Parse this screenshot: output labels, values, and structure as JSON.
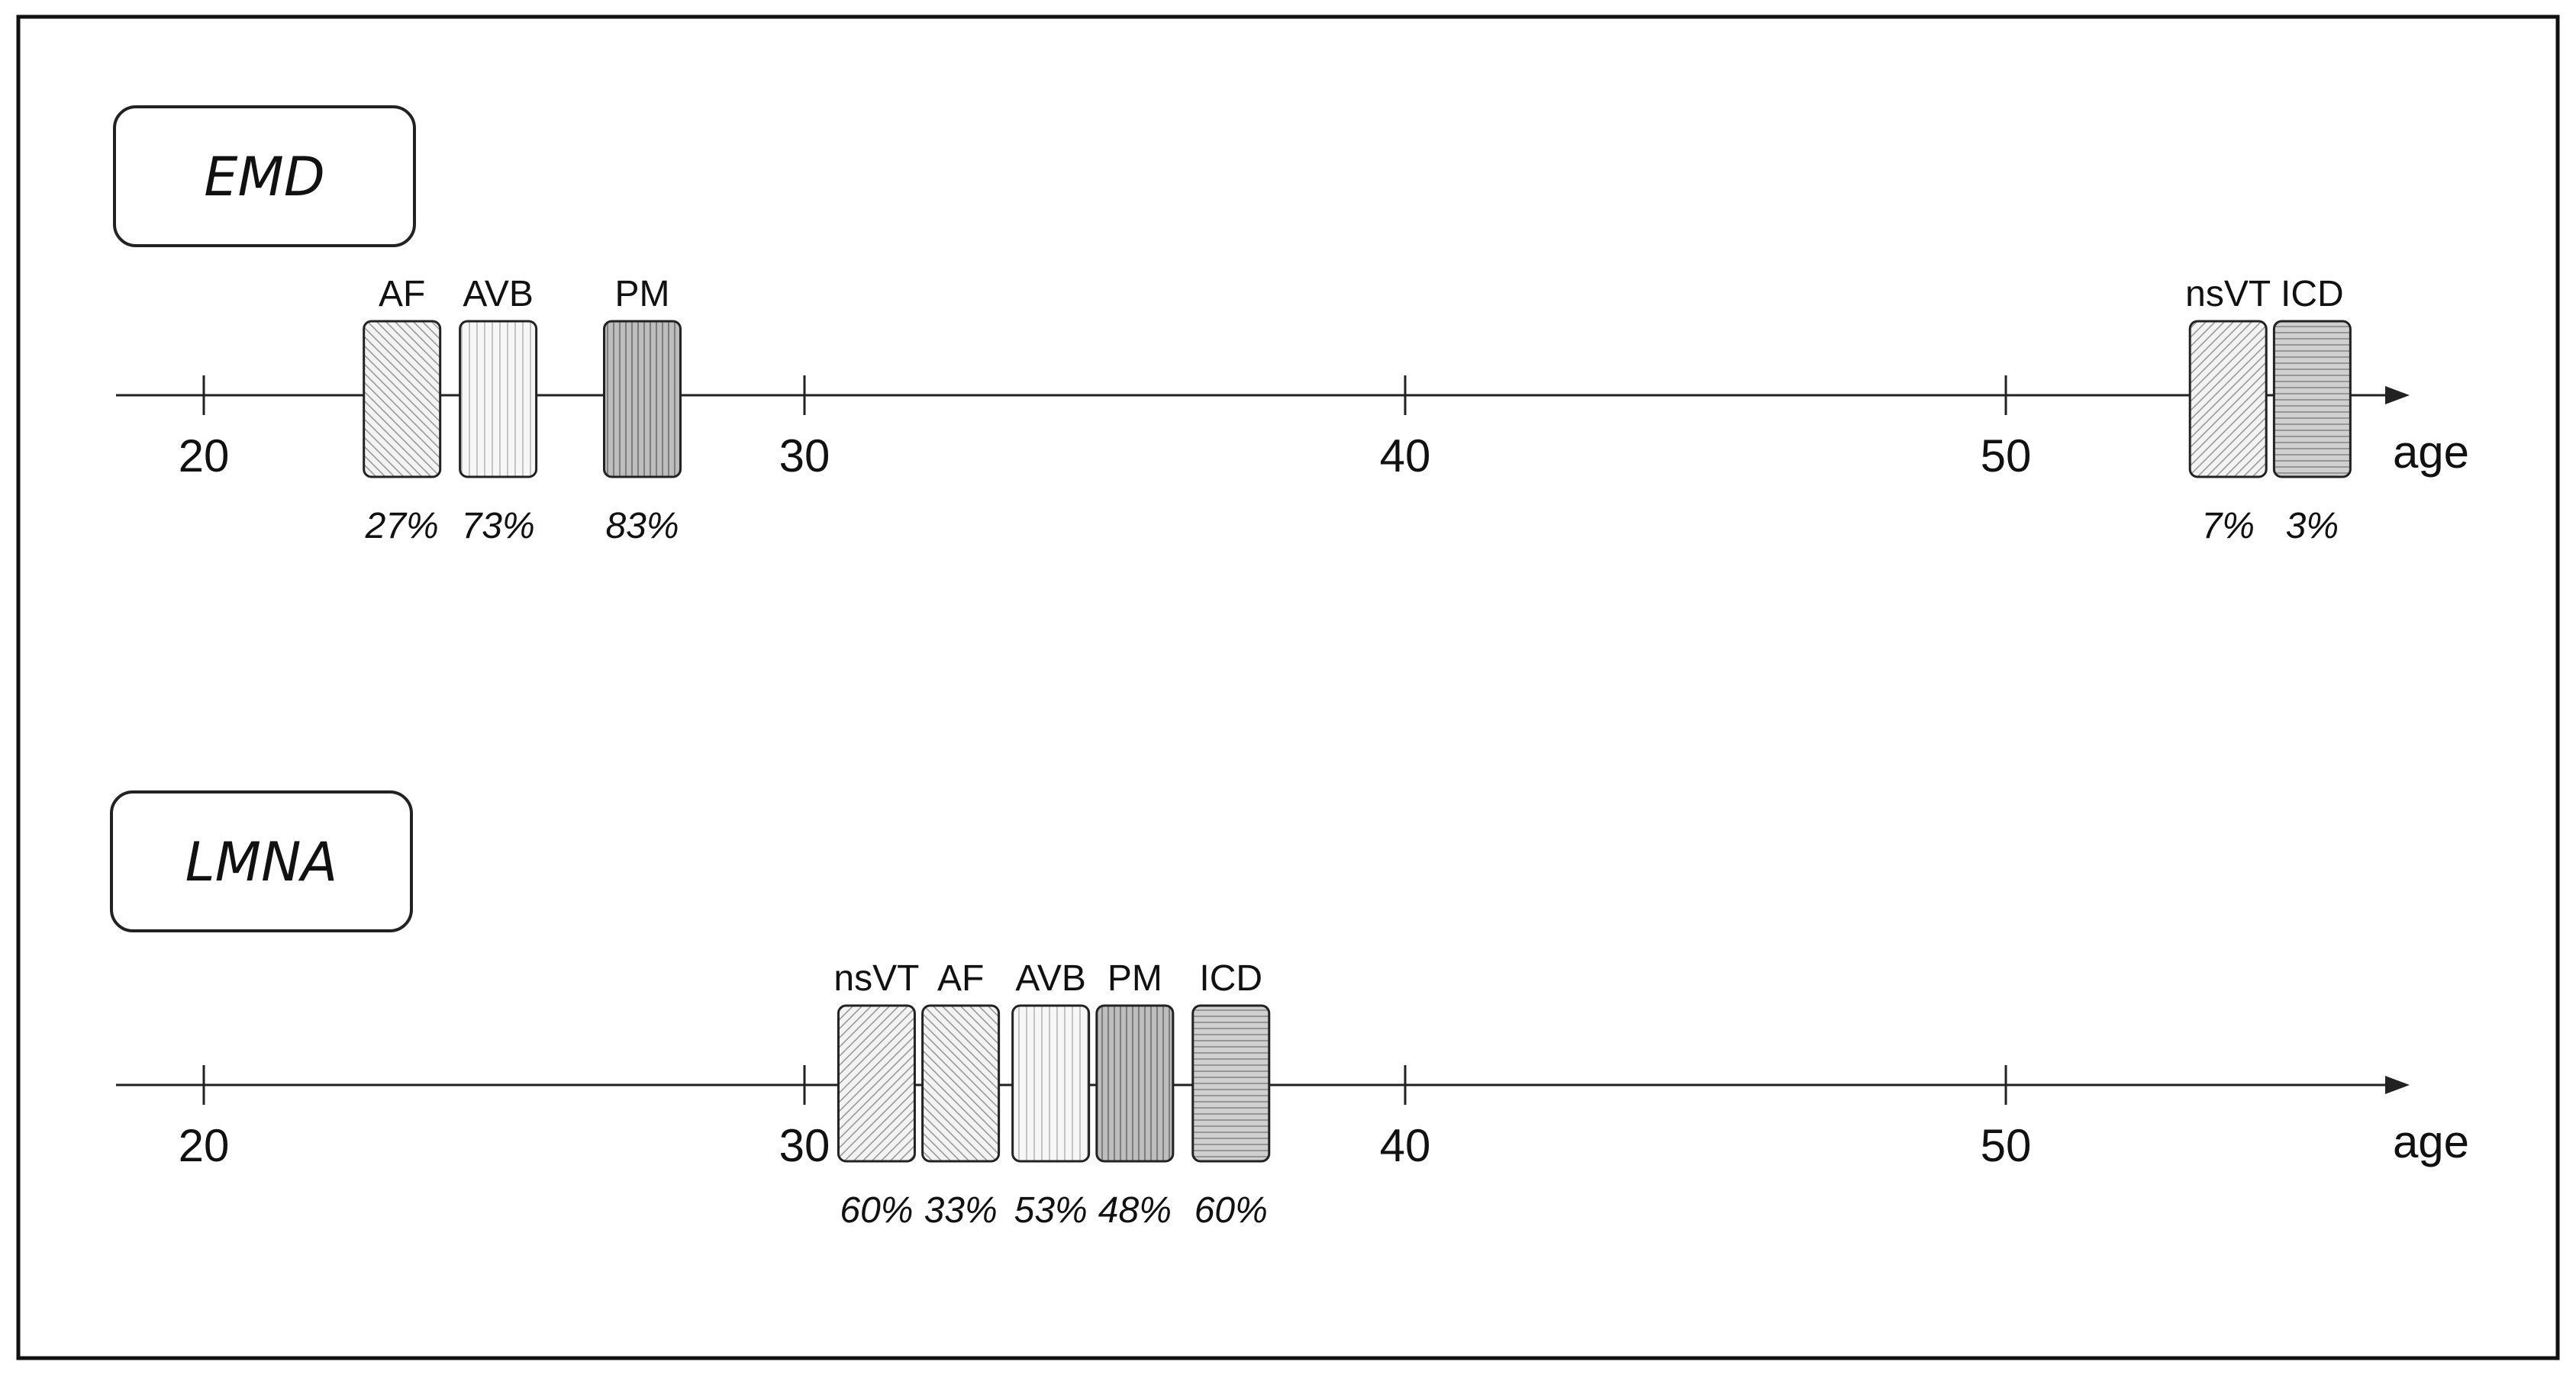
{
  "axis": {
    "label": "age",
    "ticks": [
      20,
      30,
      40,
      50
    ]
  },
  "colors": {
    "stroke": "#222222",
    "frame": "#111111",
    "diagonal_fill": "#f3f3f3",
    "vertical_fill": "#f7f7f7",
    "dark_fill": "#bdbdbd",
    "mid_fill": "#cfcfcf"
  },
  "timelines": [
    {
      "gene": "EMD",
      "events": [
        {
          "label": "AF",
          "percent": "27%",
          "age": 23.3,
          "pattern": "diagonal-down"
        },
        {
          "label": "AVB",
          "percent": "73%",
          "age": 24.9,
          "pattern": "vertical"
        },
        {
          "label": "PM",
          "percent": "83%",
          "age": 27.3,
          "pattern": "vertical-dark"
        },
        {
          "label": "nsVT",
          "percent": "7%",
          "age": 53.7,
          "pattern": "diagonal-up"
        },
        {
          "label": "ICD",
          "percent": "3%",
          "age": 55.1,
          "pattern": "horizontal"
        }
      ]
    },
    {
      "gene": "LMNA",
      "events": [
        {
          "label": "nsVT",
          "percent": "60%",
          "age": 31.2,
          "pattern": "diagonal-up"
        },
        {
          "label": "AF",
          "percent": "33%",
          "age": 32.6,
          "pattern": "diagonal-down"
        },
        {
          "label": "AVB",
          "percent": "53%",
          "age": 34.1,
          "pattern": "vertical"
        },
        {
          "label": "PM",
          "percent": "48%",
          "age": 35.5,
          "pattern": "vertical-dark"
        },
        {
          "label": "ICD",
          "percent": "60%",
          "age": 37.1,
          "pattern": "horizontal"
        }
      ]
    }
  ]
}
